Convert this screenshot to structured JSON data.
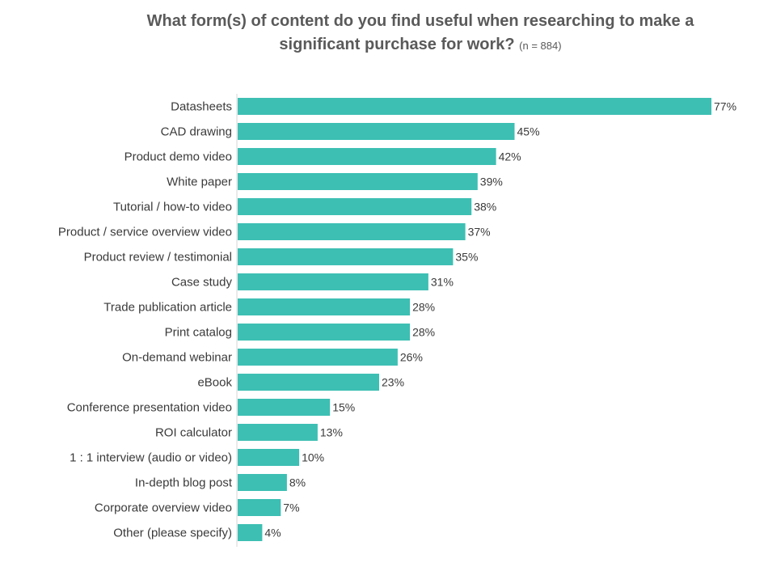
{
  "chart_data": {
    "type": "bar",
    "orientation": "horizontal",
    "title_line1": "What form(s) of content do you find useful when researching to make a",
    "title_line2": "significant purchase for work?",
    "subtitle": "(n = 884)",
    "categories": [
      "Datasheets",
      "CAD drawing",
      "Product demo video",
      "White paper",
      "Tutorial / how-to video",
      "Product / service overview video",
      "Product review / testimonial",
      "Case study",
      "Trade publication article",
      "Print catalog",
      "On-demand webinar",
      "eBook",
      "Conference presentation video",
      "ROI calculator",
      "1 : 1 interview (audio or video)",
      "In-depth blog post",
      "Corporate overview video",
      "Other (please specify)"
    ],
    "values": [
      77,
      45,
      42,
      39,
      38,
      37,
      35,
      31,
      28,
      28,
      26,
      23,
      15,
      13,
      10,
      8,
      7,
      4
    ],
    "value_labels": [
      "77%",
      "45%",
      "42%",
      "39%",
      "38%",
      "37%",
      "35%",
      "31%",
      "28%",
      "28%",
      "26%",
      "23%",
      "15%",
      "13%",
      "10%",
      "8%",
      "7%",
      "4%"
    ],
    "xlim": [
      0,
      77
    ],
    "unit": "%",
    "bar_color": "#3dbfb3",
    "grid": false
  }
}
